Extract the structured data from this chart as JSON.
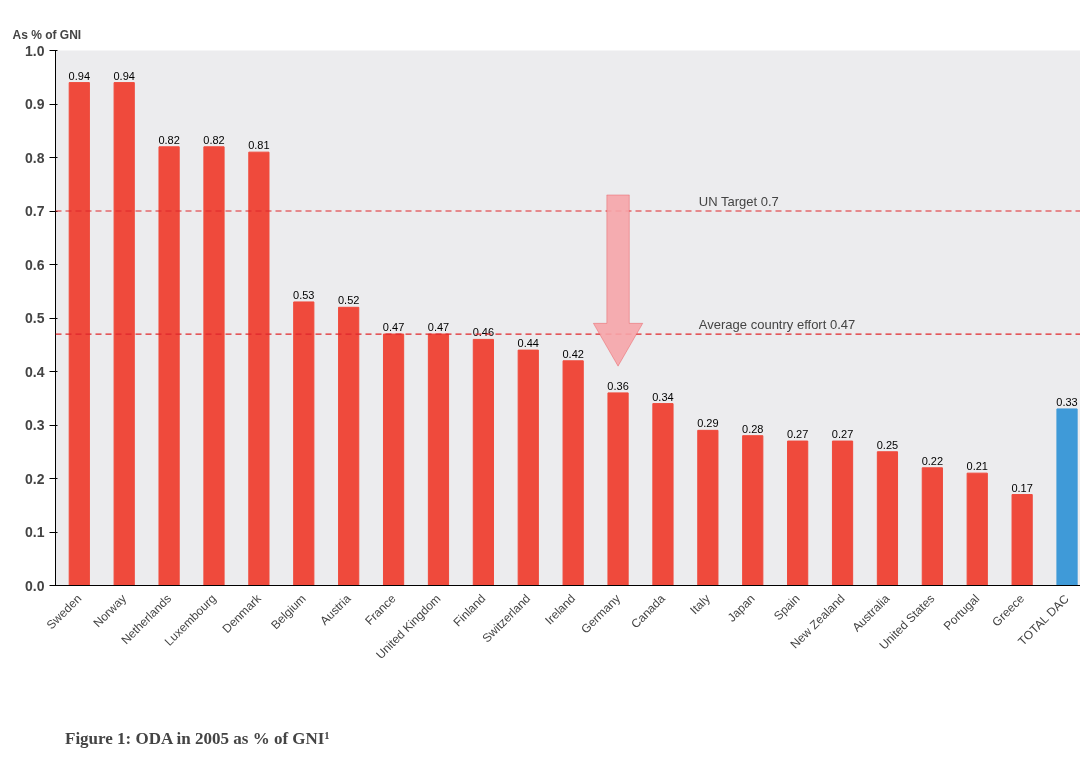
{
  "chart_data": {
    "type": "bar",
    "ylabel": "As % of GNI",
    "categories": [
      "Sweden",
      "Norway",
      "Netherlands",
      "Luxembourg",
      "Denmark",
      "Belgium",
      "Austria",
      "France",
      "United Kingdom",
      "Finland",
      "Switzerland",
      "Ireland",
      "Germany",
      "Canada",
      "Italy",
      "Japan",
      "Spain",
      "New Zealand",
      "Australia",
      "United States",
      "Portugal",
      "Greece",
      "TOTAL DAC"
    ],
    "values": [
      0.94,
      0.94,
      0.82,
      0.82,
      0.81,
      0.53,
      0.52,
      0.47,
      0.47,
      0.46,
      0.44,
      0.42,
      0.36,
      0.34,
      0.29,
      0.28,
      0.27,
      0.27,
      0.25,
      0.22,
      0.21,
      0.17,
      0.33
    ],
    "colors": [
      "#ef4a3c",
      "#ef4a3c",
      "#ef4a3c",
      "#ef4a3c",
      "#ef4a3c",
      "#ef4a3c",
      "#ef4a3c",
      "#ef4a3c",
      "#ef4a3c",
      "#ef4a3c",
      "#ef4a3c",
      "#ef4a3c",
      "#ef4a3c",
      "#ef4a3c",
      "#ef4a3c",
      "#ef4a3c",
      "#ef4a3c",
      "#ef4a3c",
      "#ef4a3c",
      "#ef4a3c",
      "#ef4a3c",
      "#ef4a3c",
      "#3f9ad8"
    ],
    "data_labels": true,
    "ylim": [
      0,
      1.0
    ],
    "yticks": [
      {
        "value": 0,
        "label": "0.0"
      },
      0.1,
      0.2,
      0.3,
      0.4,
      0.5,
      0.6,
      0.7,
      0.8,
      0.9,
      {
        "value": 1,
        "label": "1.0"
      }
    ],
    "ref_lines": [
      {
        "axis": "y",
        "value": 0.7,
        "label": "UN Target 0.7",
        "color": "#e0262b",
        "line_style": "dashed"
      },
      {
        "axis": "y",
        "value": 0.47,
        "label": "Average country effort 0.47",
        "color": "#e0262b",
        "line_style": "dashed"
      }
    ],
    "annotations": [
      "Figure 1: ODA in 2005 as % of GNI¹"
    ],
    "grid": false
  }
}
